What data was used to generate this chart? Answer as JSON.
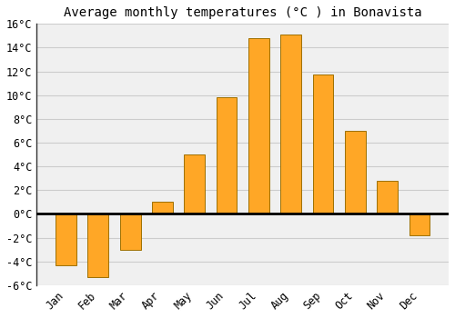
{
  "title": "Average monthly temperatures (Â°C ) in Bonavista",
  "title_text": "Average monthly temperatures (°C ) in Bonavista",
  "months": [
    "Jan",
    "Feb",
    "Mar",
    "Apr",
    "May",
    "Jun",
    "Jul",
    "Aug",
    "Sep",
    "Oct",
    "Nov",
    "Dec"
  ],
  "values": [
    -4.3,
    -5.3,
    -3.0,
    1.0,
    5.0,
    9.8,
    14.8,
    15.1,
    11.7,
    7.0,
    2.8,
    -1.8
  ],
  "bar_color": "#FFA726",
  "bar_edge_color": "#9E7000",
  "ylim": [
    -6,
    16
  ],
  "yticks": [
    -6,
    -4,
    -2,
    0,
    2,
    4,
    6,
    8,
    10,
    12,
    14,
    16
  ],
  "ytick_labels": [
    "-6°C",
    "-4°C",
    "-2°C",
    "0°C",
    "2°C",
    "4°C",
    "6°C",
    "8°C",
    "10°C",
    "12°C",
    "14°C",
    "16°C"
  ],
  "grid_color": "#CCCCCC",
  "plot_bg_color": "#F0F0F0",
  "fig_bg_color": "#FFFFFF",
  "zero_line_color": "#000000",
  "left_spine_color": "#333333",
  "title_fontsize": 10,
  "tick_fontsize": 8.5,
  "bar_width": 0.65
}
